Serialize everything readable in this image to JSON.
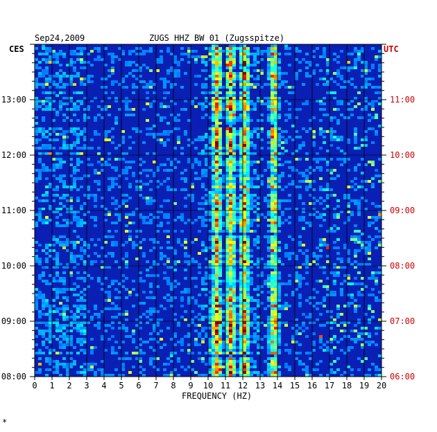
{
  "header": {
    "date": "Sep24,2009",
    "station": "ZUGS HHZ BW 01 (Zugsspitze)",
    "left_tz": "CES",
    "right_tz": "UTC"
  },
  "footer": {
    "corner_mark": "*"
  },
  "colors": {
    "left_labels": "#000000",
    "right_labels": "#cc0000",
    "background_blue": "#0a1fb4"
  },
  "chart_data": {
    "type": "heatmap",
    "title": "ZUGS HHZ BW 01 (Zugsspitze)",
    "xlabel": "FREQUENCY (HZ)",
    "ylabel": "",
    "xlim": [
      0,
      20
    ],
    "x_ticks": [
      "0",
      "1",
      "2",
      "3",
      "4",
      "5",
      "6",
      "7",
      "8",
      "9",
      "10",
      "11",
      "12",
      "13",
      "14",
      "15",
      "16",
      "17",
      "18",
      "19",
      "20"
    ],
    "y_left_ticks": [
      "13:00",
      "12:00",
      "11:00",
      "10:00",
      "09:00",
      "08:00"
    ],
    "y_right_ticks": [
      "11:00",
      "10:00",
      "09:00",
      "08:00",
      "07:00",
      "06:00"
    ],
    "y_range_local": [
      "08:00",
      "14:00"
    ],
    "grid": true,
    "colormap": "jet",
    "dominant_bands_hz": [
      10.5,
      11.3,
      12.1,
      13.8
    ],
    "intermittent_bands_hz": [
      17.0,
      18.5,
      19.5
    ]
  }
}
